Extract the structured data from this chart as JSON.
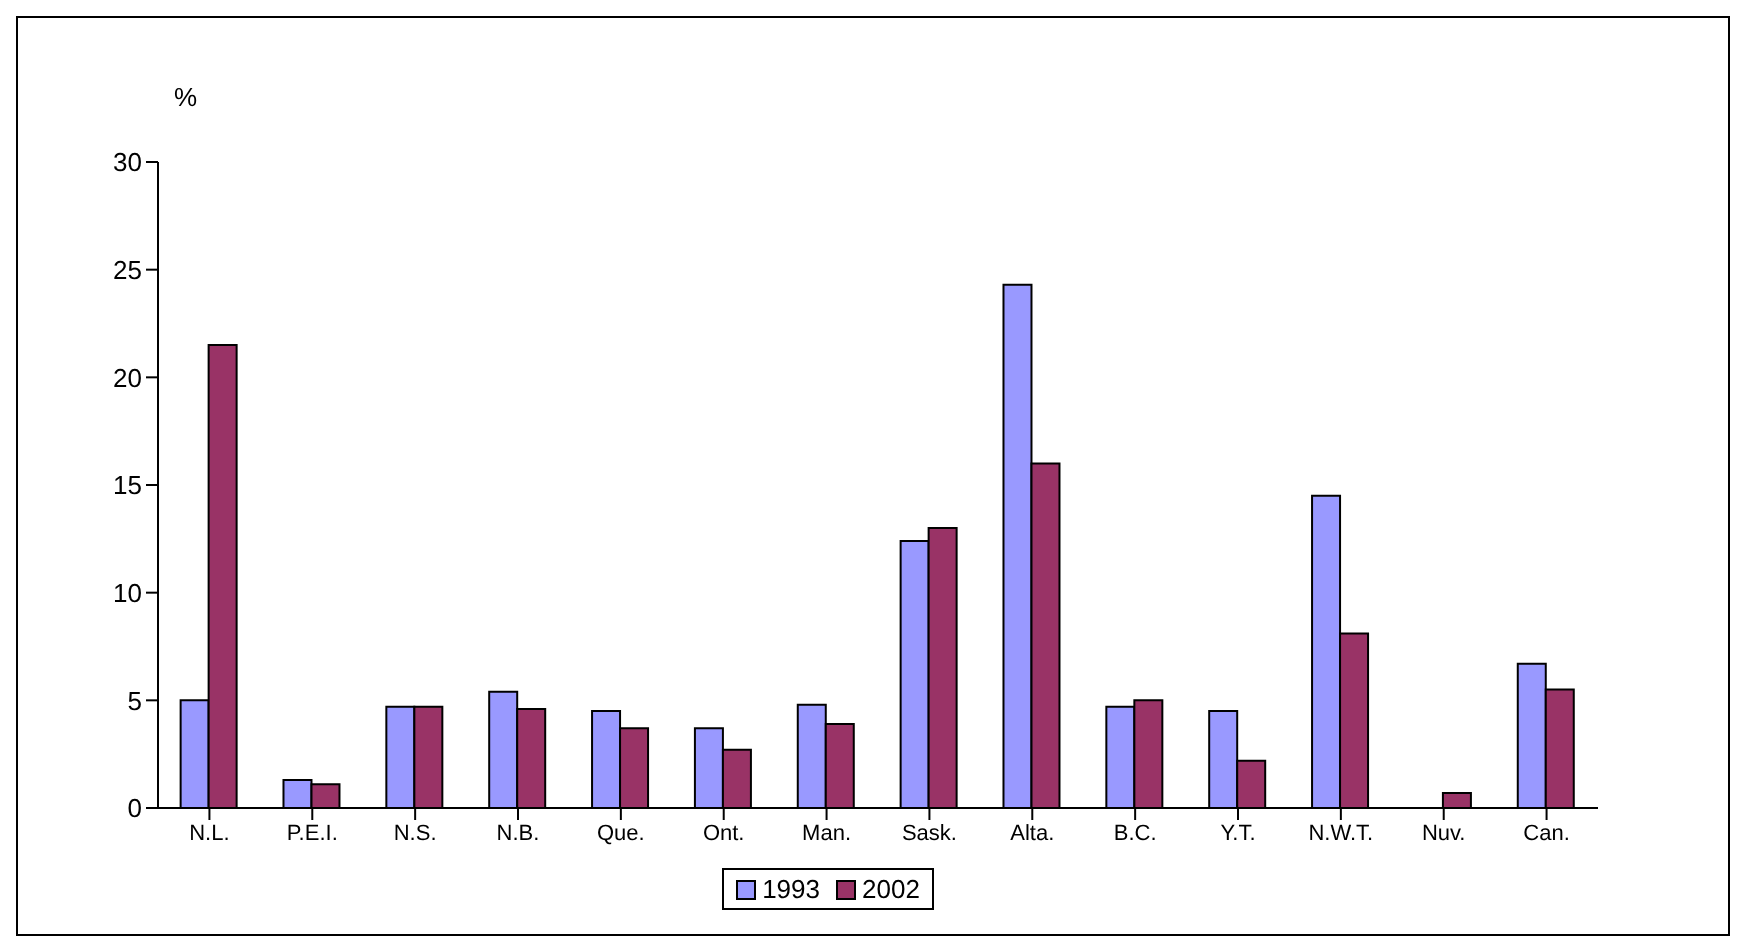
{
  "chart_data": {
    "type": "bar",
    "ylabel": "%",
    "categories": [
      "N.L.",
      "P.E.I.",
      "N.S.",
      "N.B.",
      "Que.",
      "Ont.",
      "Man.",
      "Sask.",
      "Alta.",
      "B.C.",
      "Y.T.",
      "N.W.T.",
      "Nuv.",
      "Can."
    ],
    "series": [
      {
        "name": "1993",
        "color": "#9999ff",
        "values": [
          5.0,
          1.3,
          4.7,
          5.4,
          4.5,
          3.7,
          4.8,
          12.4,
          24.3,
          4.7,
          4.5,
          14.5,
          null,
          6.7
        ]
      },
      {
        "name": "2002",
        "color": "#993366",
        "values": [
          21.5,
          1.1,
          4.7,
          4.6,
          3.7,
          2.7,
          3.9,
          13.0,
          16.0,
          5.0,
          2.2,
          8.1,
          0.7,
          5.5
        ]
      }
    ],
    "ylim": [
      0,
      30
    ],
    "yticks": [
      0,
      5,
      10,
      15,
      20,
      25,
      30
    ],
    "grid": false,
    "legend": "bottom"
  }
}
